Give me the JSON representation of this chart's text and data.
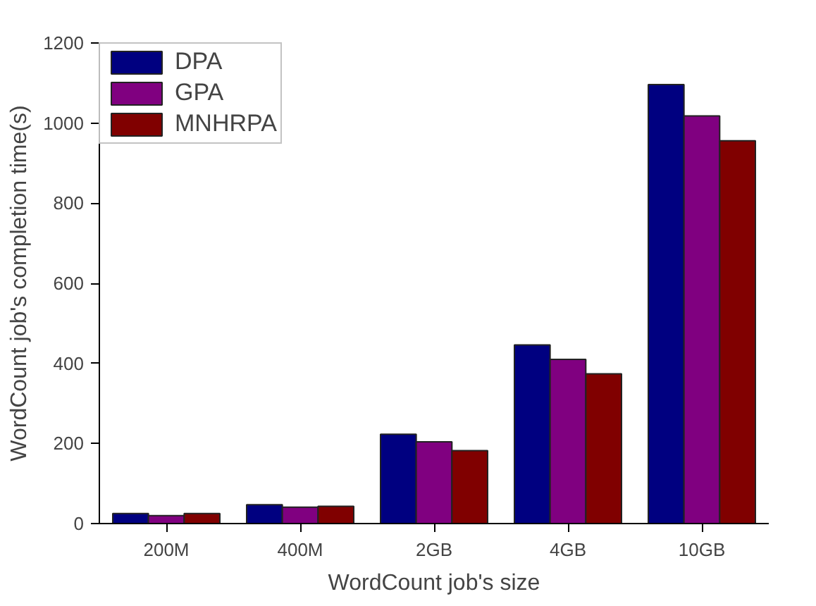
{
  "chart_data": {
    "type": "bar",
    "xlabel": "WordCount job's size",
    "ylabel": "WordCount job's completion time(s)",
    "categories": [
      "200M",
      "400M",
      "2GB",
      "4GB",
      "10GB"
    ],
    "series": [
      {
        "name": "DPA",
        "color": "#000080",
        "values": [
          25,
          47,
          223,
          446,
          1096
        ]
      },
      {
        "name": "GPA",
        "color": "#800080",
        "values": [
          20,
          41,
          204,
          410,
          1018
        ]
      },
      {
        "name": "MNHRPA",
        "color": "#800000",
        "values": [
          25,
          43,
          182,
          374,
          956
        ]
      }
    ],
    "ylim": [
      0,
      1200
    ],
    "yticks": [
      0,
      200,
      400,
      600,
      800,
      1000,
      1200
    ],
    "grid": false,
    "legend": "top left"
  }
}
